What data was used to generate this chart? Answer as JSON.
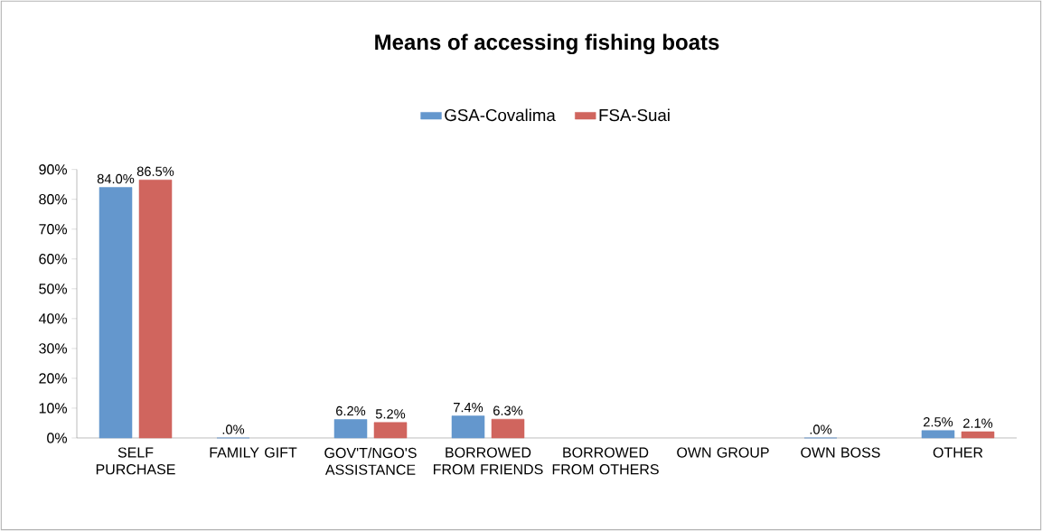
{
  "chart_data": {
    "type": "bar",
    "title": "Means of accessing fishing boats",
    "categories": [
      "SELF PURCHASE",
      "FAMILY GIFT",
      "GOV'T/NGO'S ASSISTANCE",
      "BORROWED FROM FRIENDS",
      "BORROWED FROM OTHERS",
      "OWN GROUP",
      "OWN BOSS",
      "OTHER"
    ],
    "series": [
      {
        "name": "GSA-Covalima",
        "color": "#6497cd",
        "values": [
          84.0,
          0,
          6.2,
          7.4,
          null,
          null,
          0,
          2.5
        ],
        "value_labels": [
          "84.0%",
          ".0%",
          "6.2%",
          "7.4%",
          null,
          null,
          ".0%",
          "2.5%"
        ]
      },
      {
        "name": "FSA-Suai",
        "color": "#d0655e",
        "values": [
          86.5,
          null,
          5.2,
          6.3,
          null,
          null,
          null,
          2.1
        ],
        "value_labels": [
          "86.5%",
          null,
          "5.2%",
          "6.3%",
          null,
          null,
          null,
          "2.1%"
        ]
      }
    ],
    "ylim": [
      0,
      90
    ],
    "yticks": [
      {
        "value": 0,
        "label": "0%"
      },
      {
        "value": 10,
        "label": "10%"
      },
      {
        "value": 20,
        "label": "20%"
      },
      {
        "value": 30,
        "label": "30%"
      },
      {
        "value": 40,
        "label": "40%"
      },
      {
        "value": 50,
        "label": "50%"
      },
      {
        "value": 60,
        "label": "60%"
      },
      {
        "value": 70,
        "label": "70%"
      },
      {
        "value": 80,
        "label": "80%"
      },
      {
        "value": 90,
        "label": "90%"
      }
    ],
    "legend": "top"
  }
}
